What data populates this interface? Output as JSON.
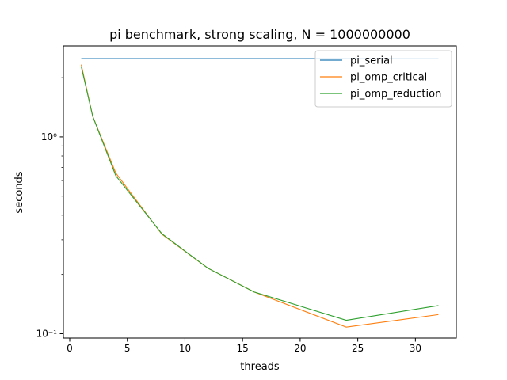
{
  "chart_data": {
    "type": "line",
    "title": "pi benchmark, strong scaling, N = 1000000000",
    "xlabel": "threads",
    "ylabel": "seconds",
    "xlim": [
      -0.55,
      33.55
    ],
    "ylim": [
      0.095,
      2.9
    ],
    "yscale": "log",
    "grid": false,
    "legend_position": "upper right",
    "x_ticks": [
      0,
      5,
      10,
      15,
      20,
      25,
      30
    ],
    "x_tick_labels": [
      "0",
      "5",
      "10",
      "15",
      "20",
      "25",
      "30"
    ],
    "y_major_ticks": [
      0.1,
      1
    ],
    "y_tick_labels": [
      "10⁻¹",
      "10⁰"
    ],
    "y_minor_ticks": [
      0.2,
      0.3,
      0.4,
      0.5,
      0.6,
      0.7,
      0.8,
      0.9,
      2
    ],
    "series": [
      {
        "name": "pi_serial",
        "color": "#1f77b4",
        "x": [
          1,
          32
        ],
        "y": [
          2.5,
          2.5
        ]
      },
      {
        "name": "pi_omp_critical",
        "color": "#ff7f0e",
        "x": [
          1,
          2,
          4,
          8,
          12,
          16,
          24,
          32
        ],
        "y": [
          2.33,
          1.27,
          0.655,
          0.32,
          0.215,
          0.163,
          0.108,
          0.125
        ]
      },
      {
        "name": "pi_omp_reduction",
        "color": "#2ca02c",
        "x": [
          1,
          2,
          4,
          8,
          12,
          16,
          24,
          32
        ],
        "y": [
          2.28,
          1.27,
          0.635,
          0.322,
          0.215,
          0.163,
          0.117,
          0.139
        ]
      }
    ]
  }
}
